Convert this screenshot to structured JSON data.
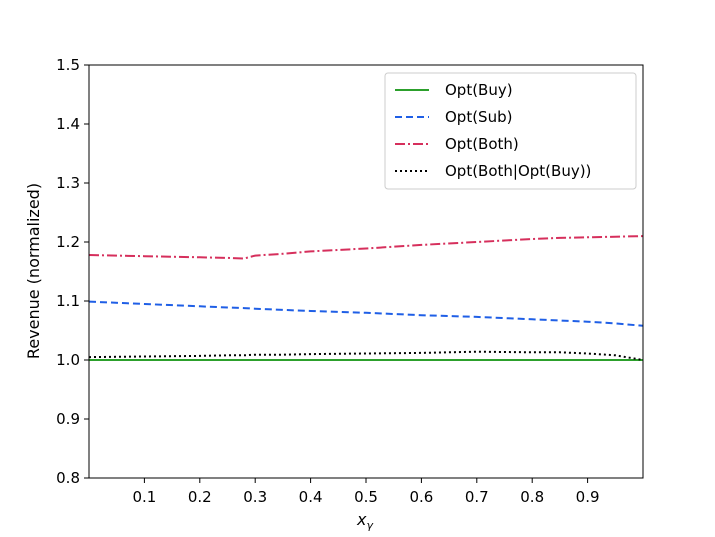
{
  "chart_data": {
    "type": "line",
    "xlabel": "x",
    "xlabel_subscript": "γ",
    "ylabel": "Revenue (normalized)",
    "xlim": [
      0.0,
      1.0
    ],
    "ylim": [
      0.8,
      1.5
    ],
    "xticks": [
      0.1,
      0.2,
      0.3,
      0.4,
      0.5,
      0.6,
      0.7,
      0.8,
      0.9
    ],
    "xtick_labels": [
      "0.1",
      "0.2",
      "0.3",
      "0.4",
      "0.5",
      "0.6",
      "0.7",
      "0.8",
      "0.9"
    ],
    "yticks": [
      0.8,
      0.9,
      1.0,
      1.1,
      1.2,
      1.3,
      1.4,
      1.5
    ],
    "ytick_labels": [
      "0.8",
      "0.9",
      "1.0",
      "1.1",
      "1.2",
      "1.3",
      "1.4",
      "1.5"
    ],
    "grid": false,
    "legend_position": "top-right",
    "x": [
      0.0,
      0.1,
      0.2,
      0.25,
      0.28,
      0.3,
      0.35,
      0.4,
      0.5,
      0.6,
      0.7,
      0.8,
      0.85,
      0.9,
      0.95,
      1.0
    ],
    "series": [
      {
        "name": "Opt(Buy)",
        "color": "#2ca02c",
        "style": "solid",
        "values": [
          1.0,
          1.0,
          1.0,
          1.0,
          1.0,
          1.0,
          1.0,
          1.0,
          1.0,
          1.0,
          1.0,
          1.0,
          1.0,
          1.0,
          1.0,
          1.0
        ]
      },
      {
        "name": "Opt(Sub)",
        "color": "#1f5fe6",
        "style": "dashed",
        "values": [
          1.099,
          1.095,
          1.091,
          1.089,
          1.088,
          1.087,
          1.085,
          1.083,
          1.08,
          1.076,
          1.073,
          1.069,
          1.067,
          1.065,
          1.062,
          1.058
        ]
      },
      {
        "name": "Opt(Both)",
        "color": "#d62f5c",
        "style": "dashdot",
        "values": [
          1.178,
          1.176,
          1.174,
          1.173,
          1.172,
          1.177,
          1.18,
          1.184,
          1.189,
          1.195,
          1.2,
          1.205,
          1.207,
          1.208,
          1.209,
          1.21
        ]
      },
      {
        "name": "Opt(Both|Opt(Buy))",
        "color": "#000000",
        "style": "dotted",
        "values": [
          1.005,
          1.006,
          1.007,
          1.008,
          1.008,
          1.009,
          1.009,
          1.01,
          1.011,
          1.012,
          1.014,
          1.013,
          1.013,
          1.011,
          1.008,
          1.0
        ]
      }
    ]
  }
}
